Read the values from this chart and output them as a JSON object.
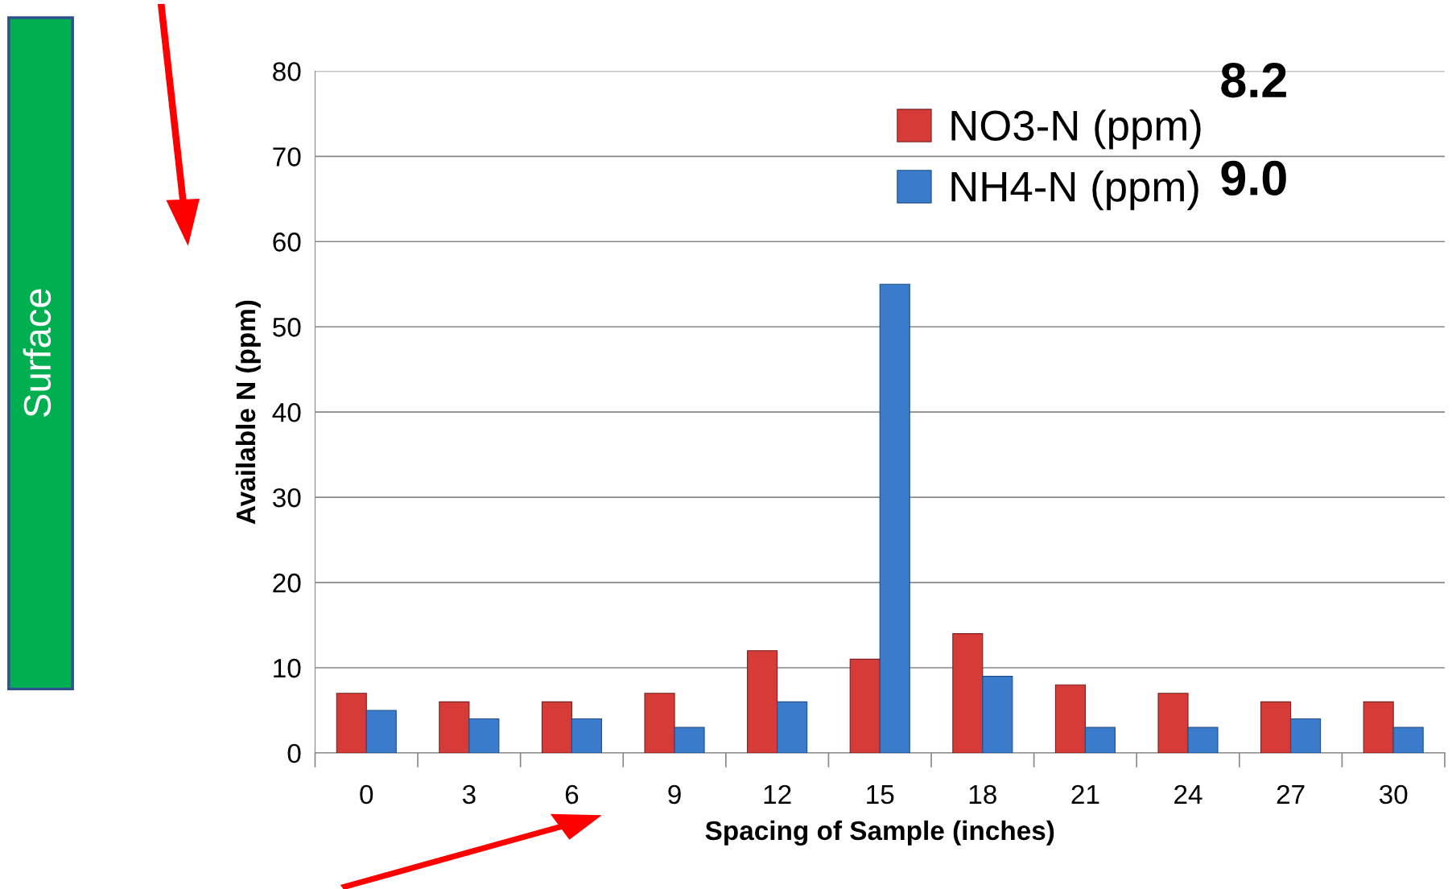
{
  "chart_data": {
    "type": "bar",
    "xlabel": "Spacing of Sample (inches)",
    "ylabel": "Available N (ppm)",
    "categories": [
      "0",
      "3",
      "6",
      "9",
      "12",
      "15",
      "18",
      "21",
      "24",
      "27",
      "30"
    ],
    "series": [
      {
        "name": "NO3-N (ppm)",
        "color": "#d63b37",
        "values": [
          7,
          6,
          6,
          7,
          12,
          11,
          14,
          8,
          7,
          6,
          6
        ]
      },
      {
        "name": "NH4-N (ppm)",
        "color": "#3a7bcb",
        "values": [
          5,
          4,
          4,
          3,
          6,
          55,
          9,
          3,
          3,
          4,
          3
        ]
      }
    ],
    "ylim": [
      0,
      80
    ],
    "yticks": [
      0,
      10,
      20,
      30,
      40,
      50,
      60,
      70,
      80
    ],
    "grid": "y",
    "legend": "top right",
    "annotations": [
      "8.2",
      "9.0",
      "Surface"
    ]
  }
}
